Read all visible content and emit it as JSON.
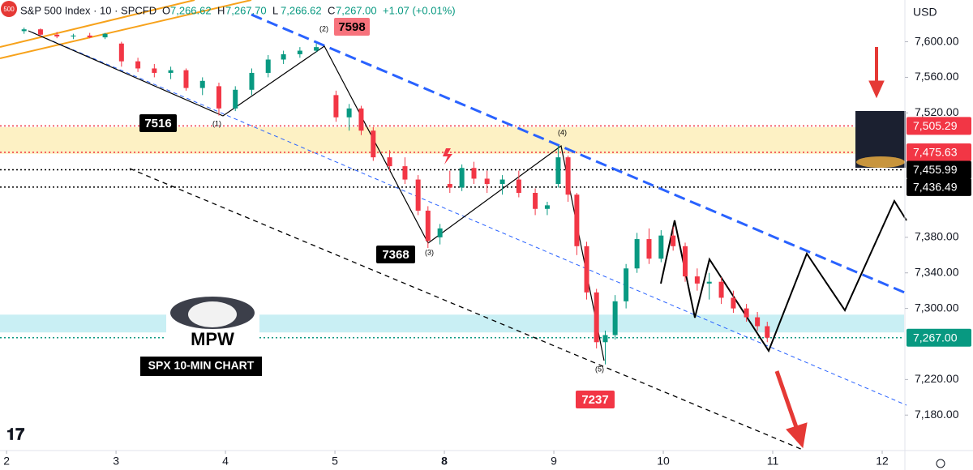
{
  "chart_data": {
    "type": "candlestick",
    "title": "S&P 500 Index · 10 · SPCFD",
    "symbol_badge": "500",
    "readout": [
      [
        "O",
        "7,266.62"
      ],
      [
        "H",
        "7,267.70"
      ],
      [
        "L",
        "7,266.62"
      ],
      [
        "C",
        "7,267.00"
      ]
    ],
    "change": "+1.07 (+0.01%)",
    "currency": "USD",
    "up_color": "#089981",
    "down_color": "#f23645",
    "x": [
      0.16,
      0.31,
      0.46,
      0.61,
      0.76,
      0.9,
      1.05,
      1.2,
      1.35,
      1.5,
      1.64,
      1.79,
      1.94,
      2.09,
      2.24,
      2.39,
      2.53,
      2.68,
      2.83,
      3.01,
      3.13,
      3.24,
      3.35,
      3.5,
      3.64,
      3.76,
      3.85,
      3.96,
      4.05,
      4.16,
      4.27,
      4.39,
      4.53,
      4.68,
      4.83,
      4.94,
      5.04,
      5.13,
      5.21,
      5.3,
      5.39,
      5.47,
      5.56,
      5.66,
      5.76,
      5.87,
      5.98,
      6.09,
      6.2,
      6.31,
      6.42,
      6.53,
      6.64,
      6.76,
      6.86,
      6.95
    ],
    "open": [
      7612,
      7614,
      7608,
      7606,
      7607,
      7605,
      7598,
      7578,
      7570,
      7565,
      7568,
      7548,
      7550,
      7525,
      7546,
      7565,
      7580,
      7586,
      7590,
      7540,
      7515,
      7525,
      7500,
      7470,
      7460,
      7445,
      7410,
      7380,
      7440,
      7436,
      7458,
      7446,
      7440,
      7445,
      7430,
      7412,
      7440,
      7470,
      7428,
      7370,
      7318,
      7262,
      7270,
      7308,
      7345,
      7378,
      7356,
      7382,
      7370,
      7336,
      7328,
      7330,
      7312,
      7300,
      7290,
      7280
    ],
    "high": [
      7616,
      7615,
      7611,
      7609,
      7610,
      7610,
      7600,
      7582,
      7575,
      7572,
      7570,
      7560,
      7554,
      7550,
      7570,
      7585,
      7590,
      7594,
      7598,
      7545,
      7530,
      7528,
      7504,
      7478,
      7470,
      7450,
      7415,
      7395,
      7455,
      7462,
      7465,
      7455,
      7450,
      7455,
      7435,
      7420,
      7483,
      7472,
      7430,
      7375,
      7322,
      7275,
      7315,
      7350,
      7385,
      7390,
      7388,
      7392,
      7374,
      7345,
      7340,
      7335,
      7320,
      7305,
      7296,
      7285
    ],
    "low": [
      7609,
      7606,
      7604,
      7603,
      7604,
      7603,
      7572,
      7566,
      7560,
      7558,
      7545,
      7540,
      7517,
      7522,
      7540,
      7560,
      7575,
      7582,
      7588,
      7510,
      7500,
      7495,
      7466,
      7455,
      7440,
      7405,
      7368,
      7372,
      7430,
      7432,
      7440,
      7430,
      7428,
      7425,
      7405,
      7405,
      7436,
      7420,
      7360,
      7310,
      7255,
      7237,
      7265,
      7300,
      7340,
      7350,
      7352,
      7365,
      7330,
      7320,
      7310,
      7305,
      7295,
      7285,
      7275,
      7262
    ],
    "close": [
      7614,
      7608,
      7606,
      7607,
      7605,
      7609,
      7578,
      7570,
      7565,
      7568,
      7548,
      7556,
      7525,
      7546,
      7565,
      7580,
      7586,
      7590,
      7594,
      7515,
      7525,
      7500,
      7470,
      7460,
      7445,
      7410,
      7376,
      7390,
      7436,
      7458,
      7446,
      7440,
      7445,
      7430,
      7412,
      7416,
      7470,
      7428,
      7370,
      7318,
      7262,
      7270,
      7308,
      7345,
      7378,
      7356,
      7382,
      7370,
      7336,
      7328,
      7330,
      7312,
      7300,
      7290,
      7280,
      7267
    ],
    "xlim": [
      -0.06,
      8.2
    ],
    "xticks": [
      {
        "value": 0,
        "label": "2"
      },
      {
        "value": 1,
        "label": "3"
      },
      {
        "value": 2,
        "label": "4"
      },
      {
        "value": 3,
        "label": "5"
      },
      {
        "value": 4,
        "label": "8"
      },
      {
        "value": 5,
        "label": "9"
      },
      {
        "value": 6,
        "label": "10"
      },
      {
        "value": 7,
        "label": "11"
      },
      {
        "value": 8,
        "label": "12"
      }
    ],
    "ylim": [
      7141,
      7647
    ],
    "yticks": [
      {
        "value": 7600,
        "label": "7,600.00"
      },
      {
        "value": 7560,
        "label": "7,560.00"
      },
      {
        "value": 7520,
        "label": "7,520.00"
      },
      {
        "value": 7380,
        "label": "7,380.00"
      },
      {
        "value": 7340,
        "label": "7,340.00"
      },
      {
        "value": 7300,
        "label": "7,300.00"
      },
      {
        "value": 7220,
        "label": "7,220.00"
      },
      {
        "value": 7180,
        "label": "7,180.00"
      }
    ],
    "zones": [
      {
        "from": 7474,
        "to": 7504,
        "color": "#fdf1c4"
      },
      {
        "from": 7273,
        "to": 7293,
        "color": "#c9eff4"
      }
    ],
    "price_lines": [
      {
        "value": 7505.29,
        "label": "7,505.29",
        "color": "#f23645"
      },
      {
        "value": 7475.63,
        "label": "7,475.63",
        "color": "#f23645"
      },
      {
        "value": 7455.99,
        "label": "7,455.99",
        "color": "#000000"
      },
      {
        "value": 7436.49,
        "label": "7,436.49",
        "color": "#000000"
      },
      {
        "value": 7267.0,
        "label": "7,267.00",
        "color": "#089981"
      }
    ],
    "annotations": [
      "7598",
      "7516",
      "7368",
      "7237",
      "(1)",
      "(2)",
      "(3)",
      "(4)",
      "(5)"
    ],
    "logo_title": "MPW",
    "logo_caption": "SPX 10-MIN CHART"
  }
}
